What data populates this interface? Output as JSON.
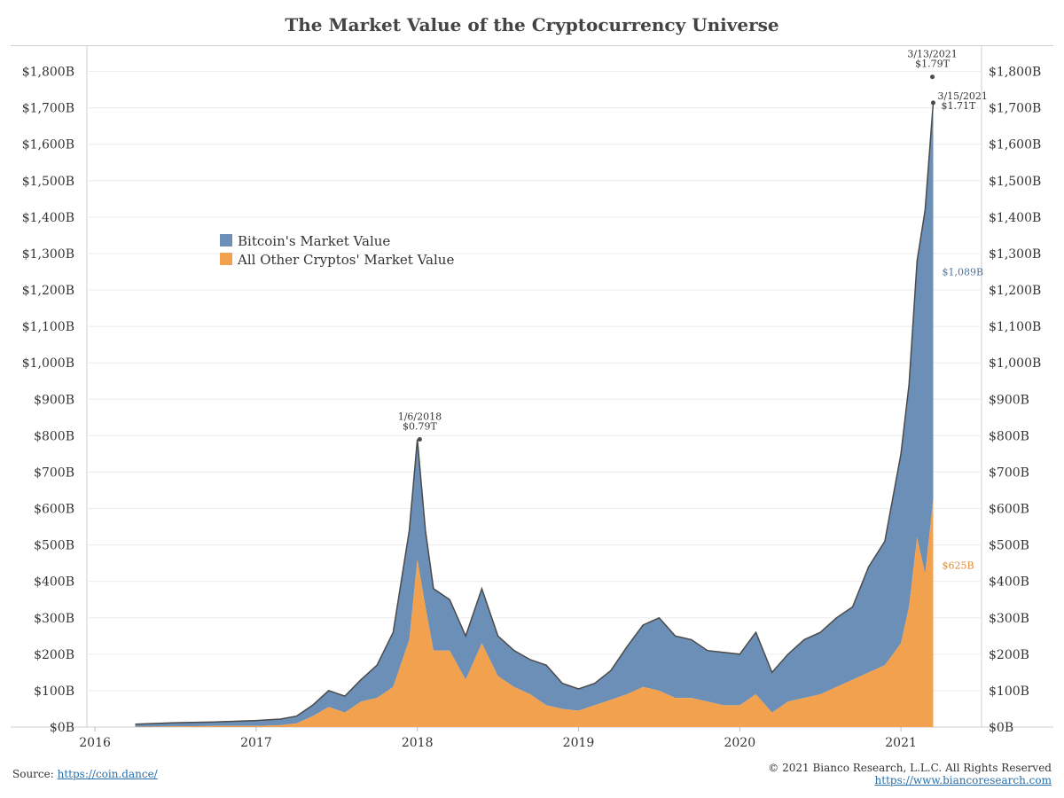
{
  "title": "The Market Value of the Cryptocurrency Universe",
  "footer": {
    "source_label": "Source:",
    "source_link": "https://coin.dance/",
    "copyright": "© 2021 Bianco Research, L.L.C. All Rights Reserved",
    "website": "https://www.biancoresearch.com"
  },
  "chart_data": {
    "type": "area",
    "stacked": true,
    "title": "The Market Value of the Cryptocurrency Universe",
    "xlabel": "",
    "ylabel": "",
    "x_tick_labels": [
      "2016",
      "2017",
      "2018",
      "2019",
      "2020",
      "2021"
    ],
    "y_tick_labels": [
      "$0B",
      "$100B",
      "$200B",
      "$300B",
      "$400B",
      "$500B",
      "$600B",
      "$700B",
      "$800B",
      "$900B",
      "$1,000B",
      "$1,100B",
      "$1,200B",
      "$1,300B",
      "$1,400B",
      "$1,500B",
      "$1,600B",
      "$1,700B",
      "$1,800B"
    ],
    "ylim": [
      0,
      1850
    ],
    "xlim": [
      2015.95,
      2021.5
    ],
    "y_axis_both_sides": true,
    "grid": true,
    "legend_position": "upper-left",
    "colors": {
      "bitcoin": "#6b8fb7",
      "others": "#f2a14e",
      "total_line": "#4a4a4a"
    },
    "x": [
      2016.25,
      2016.5,
      2016.75,
      2017.0,
      2017.15,
      2017.25,
      2017.35,
      2017.45,
      2017.55,
      2017.65,
      2017.75,
      2017.85,
      2017.95,
      2018.0,
      2018.05,
      2018.1,
      2018.2,
      2018.3,
      2018.4,
      2018.5,
      2018.6,
      2018.7,
      2018.8,
      2018.9,
      2019.0,
      2019.1,
      2019.2,
      2019.3,
      2019.4,
      2019.5,
      2019.6,
      2019.7,
      2019.8,
      2019.9,
      2020.0,
      2020.1,
      2020.2,
      2020.3,
      2020.4,
      2020.5,
      2020.6,
      2020.7,
      2020.8,
      2020.9,
      2021.0,
      2021.05,
      2021.1,
      2021.15,
      2021.2
    ],
    "series": [
      {
        "name": "Bitcoin's Market Value",
        "values": [
          7,
          10,
          11,
          15,
          17,
          20,
          30,
          45,
          45,
          60,
          90,
          150,
          300,
          330,
          210,
          170,
          140,
          120,
          150,
          110,
          100,
          95,
          110,
          70,
          60,
          60,
          80,
          130,
          170,
          200,
          170,
          160,
          140,
          145,
          140,
          170,
          110,
          130,
          160,
          170,
          190,
          200,
          290,
          340,
          520,
          610,
          760,
          1000,
          1089
        ]
      },
      {
        "name": "All Other Cryptos' Market Value",
        "values": [
          1,
          2,
          3,
          3,
          5,
          10,
          30,
          55,
          40,
          70,
          80,
          110,
          240,
          460,
          330,
          210,
          210,
          130,
          230,
          140,
          110,
          90,
          60,
          50,
          45,
          60,
          75,
          90,
          110,
          100,
          80,
          80,
          70,
          60,
          60,
          90,
          40,
          70,
          80,
          90,
          110,
          130,
          150,
          170,
          230,
          330,
          520,
          420,
          625
        ]
      }
    ],
    "annotations": [
      {
        "date": "1/6/2018",
        "value": "$0.79T",
        "x": 2018.015,
        "y": 790
      },
      {
        "date": "3/13/2021",
        "value": "$1.79T",
        "x": 2021.195,
        "y": 1785
      },
      {
        "date": "3/15/2021",
        "value": "$1.71T",
        "x": 2021.2,
        "y": 1714
      }
    ],
    "end_labels": [
      {
        "text": "$1,089B",
        "series": "Bitcoin's Market Value"
      },
      {
        "text": "$625B",
        "series": "All Other Cryptos' Market Value"
      }
    ]
  }
}
